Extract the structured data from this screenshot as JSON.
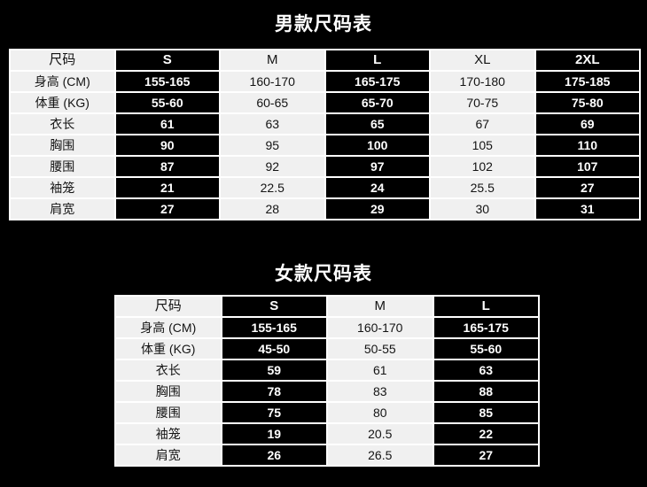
{
  "colors": {
    "page_background": "#000000",
    "light_cell_bg": "#f0f0f0",
    "dark_cell_bg": "#000000",
    "light_cell_text": "#141414",
    "dark_cell_text": "#ffffff",
    "cell_border": "#ffffff",
    "title_text": "#ffffff"
  },
  "chart_data": [
    {
      "type": "table",
      "title": "男款尺码表",
      "columns": [
        "尺码",
        "S",
        "M",
        "L",
        "XL",
        "2XL"
      ],
      "dark_columns": [
        1,
        3,
        5
      ],
      "rows": [
        [
          "身高 (CM)",
          "155-165",
          "160-170",
          "165-175",
          "170-180",
          "175-185"
        ],
        [
          "体重 (KG)",
          "55-60",
          "60-65",
          "65-70",
          "70-75",
          "75-80"
        ],
        [
          "衣长",
          "61",
          "63",
          "65",
          "67",
          "69"
        ],
        [
          "胸围",
          "90",
          "95",
          "100",
          "105",
          "110"
        ],
        [
          "腰围",
          "87",
          "92",
          "97",
          "102",
          "107"
        ],
        [
          "袖笼",
          "21",
          "22.5",
          "24",
          "25.5",
          "27"
        ],
        [
          "肩宽",
          "27",
          "28",
          "29",
          "30",
          "31"
        ]
      ]
    },
    {
      "type": "table",
      "title": "女款尺码表",
      "columns": [
        "尺码",
        "S",
        "M",
        "L"
      ],
      "dark_columns": [
        1,
        3
      ],
      "rows": [
        [
          "身高 (CM)",
          "155-165",
          "160-170",
          "165-175"
        ],
        [
          "体重 (KG)",
          "45-50",
          "50-55",
          "55-60"
        ],
        [
          "衣长",
          "59",
          "61",
          "63"
        ],
        [
          "胸围",
          "78",
          "83",
          "88"
        ],
        [
          "腰围",
          "75",
          "80",
          "85"
        ],
        [
          "袖笼",
          "19",
          "20.5",
          "22"
        ],
        [
          "肩宽",
          "26",
          "26.5",
          "27"
        ]
      ]
    }
  ]
}
